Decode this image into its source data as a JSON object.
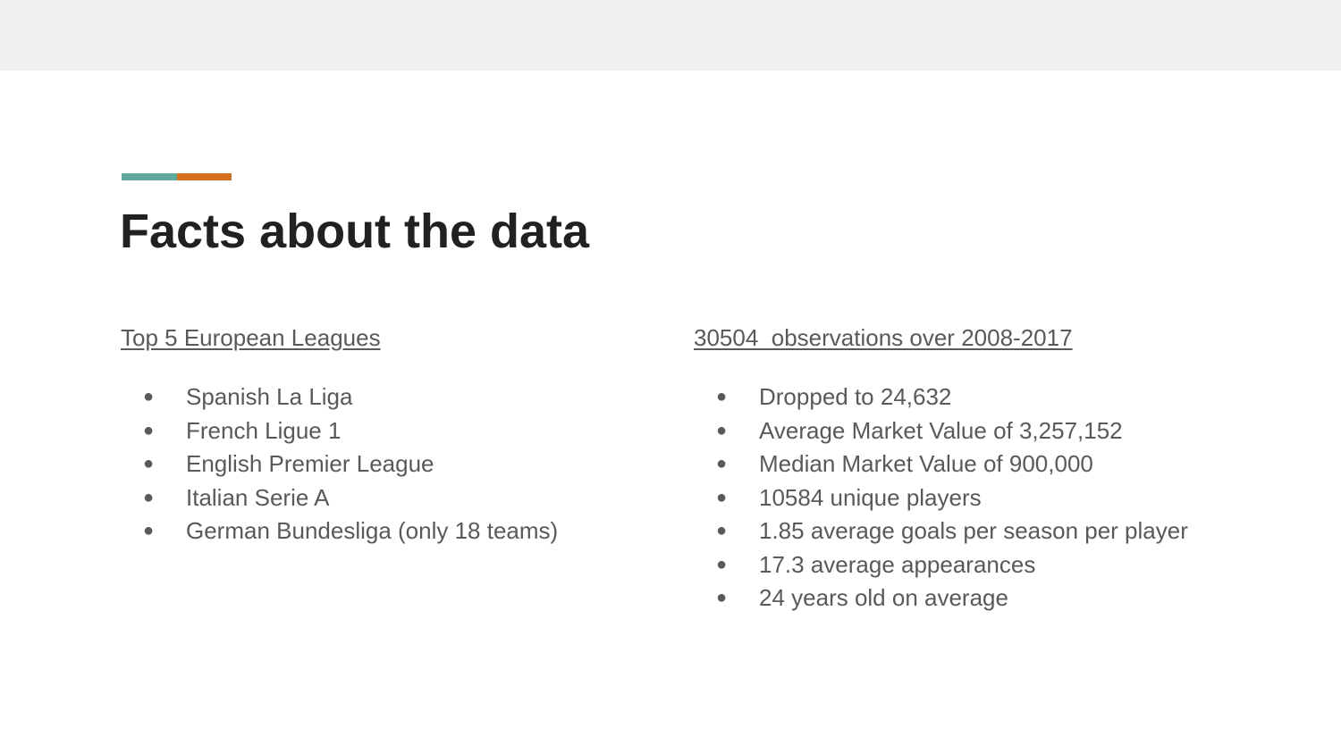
{
  "colors": {
    "top_bar": "#eff0f1",
    "accent_teal": "#5ea99c",
    "accent_orange": "#d47120",
    "title": "#212121",
    "body_text": "#595959"
  },
  "slide": {
    "title": "Facts about the data",
    "left": {
      "heading": "Top 5 European Leagues",
      "items": [
        "Spanish La Liga",
        "French Ligue 1",
        "English Premier League",
        "Italian Serie A",
        "German Bundesliga (only 18 teams)"
      ]
    },
    "right": {
      "heading": "30504  observations over 2008-2017",
      "items": [
        "Dropped to 24,632",
        "Average Market Value of 3,257,152",
        "Median Market Value of 900,000",
        "10584 unique players",
        "1.85 average goals per season per player",
        "17.3 average appearances",
        "24 years old on average"
      ]
    },
    "bullet_glyph": "●"
  }
}
